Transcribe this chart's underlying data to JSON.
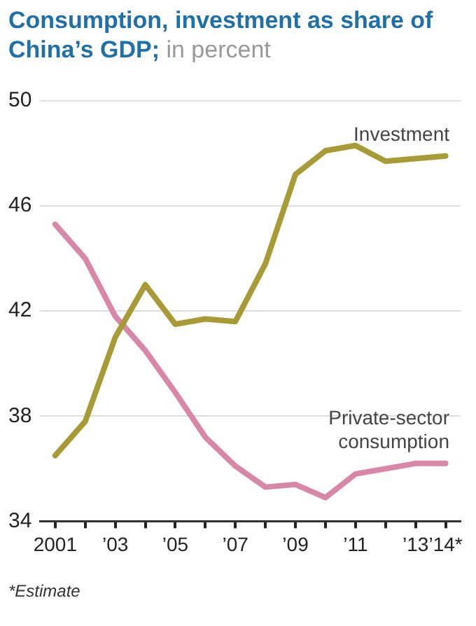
{
  "chart_data": {
    "type": "line",
    "title": "Consumption, investment as share of China’s GDP;",
    "subtitle": "in percent",
    "categories": [
      "2001",
      null,
      "’03",
      null,
      "’05",
      null,
      "’07",
      null,
      "’09",
      null,
      "’11",
      null,
      "’13",
      "’14*"
    ],
    "series": [
      {
        "name": "Investment",
        "color": "#a89a35",
        "values": [
          36.5,
          37.8,
          41.0,
          43.0,
          41.5,
          41.7,
          41.6,
          43.8,
          47.2,
          48.1,
          48.3,
          47.7,
          47.8,
          47.9
        ]
      },
      {
        "name": "Private-sector consumption",
        "color": "#d987a8",
        "values": [
          45.3,
          44.0,
          41.8,
          40.5,
          38.9,
          37.2,
          36.1,
          35.3,
          35.4,
          34.9,
          35.8,
          36.0,
          36.2,
          36.2
        ]
      }
    ],
    "ylim": [
      34,
      50
    ],
    "yticks": [
      34,
      38,
      42,
      46,
      50
    ],
    "grid": "y",
    "legend": false,
    "marker": "none",
    "line_style": "solid",
    "annotations": [
      "*Estimate"
    ]
  }
}
